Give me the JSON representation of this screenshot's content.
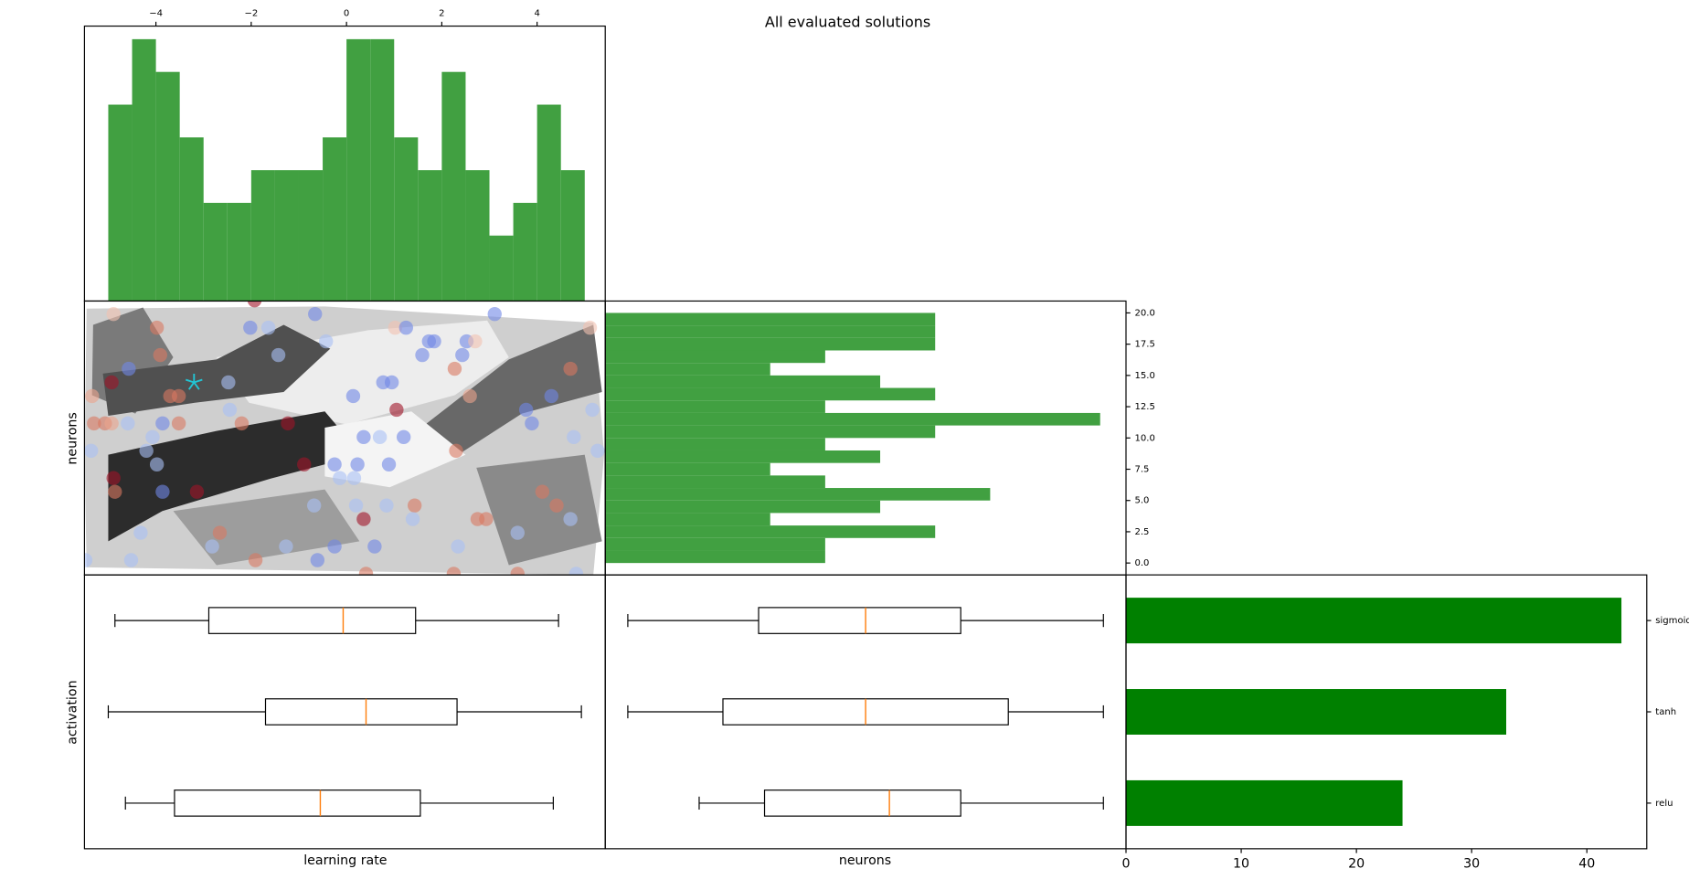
{
  "title": "All evaluated solutions",
  "chart_data": [
    {
      "type": "histogram",
      "color": "#41a041",
      "bins": [
        -5,
        -4.5,
        -4,
        -3.5,
        -3,
        -2.5,
        -2,
        -1.5,
        -1,
        -0.5,
        0,
        0.5,
        1,
        1.5,
        2,
        2.5,
        3,
        3.5,
        4,
        4.5,
        5
      ],
      "counts": [
        6,
        8,
        7,
        5,
        3,
        3,
        4,
        4,
        4,
        5,
        8,
        8,
        5,
        4,
        7,
        4,
        2,
        3,
        6,
        4
      ],
      "xlim": [
        -5.5,
        5.43
      ],
      "ylim": [
        0,
        8.4
      ],
      "xticks": [
        {
          "value": -4,
          "label": "−4"
        },
        {
          "value": -2,
          "label": "−2"
        },
        0,
        2,
        4
      ],
      "xticks_position": "top"
    },
    {
      "type": "scatter",
      "ylabel": "neurons",
      "xlim": [
        -5.5,
        5.43
      ],
      "ylim": [
        -0.08,
        19.95
      ],
      "x": [
        -4.89,
        -3.98,
        -3.91,
        -4.57,
        -4.93,
        -5.34,
        -5.3,
        -5.07,
        -4.93,
        -4.59,
        -3.86,
        -3.52,
        -3.7,
        -3.52,
        -2.48,
        -2.45,
        -2.2,
        -1.23,
        -2.02,
        -1.64,
        -1.43,
        -0.66,
        -0.43,
        0.14,
        0.77,
        0.95,
        1.05,
        1.02,
        1.25,
        1.59,
        1.73,
        1.84,
        2.43,
        2.52,
        2.7,
        2.27,
        2.59,
        3.11,
        3.77,
        3.89,
        4.3,
        4.7,
        5.11,
        5.16,
        0.36,
        0.7,
        1.2,
        2.3,
        4.77,
        5.27,
        -5.36,
        -4.2,
        -4.07,
        -3.98,
        -4.89,
        -4.86,
        -3.86,
        -3.14,
        -0.89,
        -0.25,
        0.23,
        -0.14,
        0.16,
        0.89,
        -0.68,
        0.2,
        0.84,
        1.43,
        1.39,
        0.36,
        2.75,
        2.93,
        4.11,
        4.41,
        4.7,
        3.59,
        -4.32,
        -2.66,
        -2.82,
        -1.27,
        -0.25,
        0.59,
        2.34,
        -5.48,
        -4.52,
        -1.91,
        -0.61,
        0.41,
        2.25,
        3.59,
        4.82,
        -1.93
      ],
      "y": [
        19,
        18,
        16,
        15,
        14,
        13,
        11,
        11,
        11,
        11,
        11,
        11,
        13,
        13,
        14,
        12,
        11,
        11,
        18,
        18,
        16,
        19,
        17,
        13,
        14,
        14,
        12,
        18,
        18,
        16,
        17,
        17,
        16,
        17,
        17,
        15,
        13,
        19,
        12,
        11,
        13,
        15,
        18,
        12,
        10,
        10,
        10,
        9,
        10,
        9,
        9,
        9,
        10,
        8,
        7,
        6,
        6,
        6,
        8,
        8,
        8,
        7,
        7,
        8,
        5,
        5,
        5,
        5,
        4,
        4,
        4,
        4,
        6,
        5,
        4,
        3,
        3,
        3,
        2,
        2,
        2,
        2,
        2,
        1,
        1,
        1,
        1,
        0,
        0,
        0,
        0,
        20
      ],
      "colors": [
        "#f2c2b0",
        "#d97860",
        "#d97860",
        "#6f87e6",
        "#a01428",
        "#eba48c",
        "#d97860",
        "#d97860",
        "#eba48c",
        "#a8bff5",
        "#6f87e6",
        "#d97860",
        "#d97860",
        "#d97860",
        "#a8bff5",
        "#a8bff5",
        "#d97860",
        "#a01428",
        "#6f87e6",
        "#a8bff5",
        "#a8bff5",
        "#6f87e6",
        "#a8bff5",
        "#6f87e6",
        "#6f87e6",
        "#6f87e6",
        "#a01428",
        "#f2c2b0",
        "#6f87e6",
        "#6f87e6",
        "#6f87e6",
        "#6f87e6",
        "#6f87e6",
        "#6f87e6",
        "#f2c2b0",
        "#d97860",
        "#eba48c",
        "#6f87e6",
        "#6f87e6",
        "#6f87e6",
        "#6f87e6",
        "#d97860",
        "#f2c2b0",
        "#a8bff5",
        "#6f87e6",
        "#a8bff5",
        "#6f87e6",
        "#d97860",
        "#a8bff5",
        "#a8bff5",
        "#a8bff5",
        "#a8bff5",
        "#a8bff5",
        "#a8bff5",
        "#a01428",
        "#d97860",
        "#6f87e6",
        "#a01428",
        "#a01428",
        "#6f87e6",
        "#6f87e6",
        "#a8bff5",
        "#a8bff5",
        "#6f87e6",
        "#a8bff5",
        "#a8bff5",
        "#a8bff5",
        "#d97860",
        "#a8bff5",
        "#a01428",
        "#d97860",
        "#d97860",
        "#d97860",
        "#d97860",
        "#a8bff5",
        "#a8bff5",
        "#a8bff5",
        "#d97860",
        "#a8bff5",
        "#a8bff5",
        "#6f87e6",
        "#6f87e6",
        "#a8bff5",
        "#a8bff5",
        "#a8bff5",
        "#d97860",
        "#6f87e6",
        "#d97860",
        "#d97860",
        "#d97860",
        "#a8bff5",
        "#a01428"
      ],
      "best": {
        "x": -3.2,
        "y": 14,
        "color": "#22c4d4"
      }
    },
    {
      "type": "histogram",
      "orientation": "horizontal",
      "color": "#41a041",
      "bins": [
        0,
        1,
        2,
        3,
        4,
        5,
        6,
        7,
        8,
        9,
        10,
        11,
        12,
        13,
        14,
        15,
        16,
        17,
        18,
        19,
        20
      ],
      "counts": [
        4,
        4,
        6,
        3,
        5,
        7,
        4,
        3,
        5,
        4,
        6,
        9,
        4,
        6,
        5,
        3,
        4,
        6,
        6,
        6
      ],
      "xlim": [
        0,
        9.47
      ],
      "ylim": [
        -0.95,
        20.95
      ],
      "yticks": [
        {
          "value": 0,
          "label": "0.0"
        },
        {
          "value": 2.5,
          "label": "2.5"
        },
        {
          "value": 5,
          "label": "5.0"
        },
        {
          "value": 7.5,
          "label": "7.5"
        },
        {
          "value": 10,
          "label": "10.0"
        },
        {
          "value": 12.5,
          "label": "12.5"
        },
        {
          "value": 15,
          "label": "15.0"
        },
        {
          "value": 17.5,
          "label": "17.5"
        },
        {
          "value": 20,
          "label": "20.0"
        }
      ],
      "yticks_position": "right"
    },
    {
      "type": "boxplot",
      "xlabel": "learning rate",
      "ylabel": "activation",
      "xlim": [
        -5.5,
        5.43
      ],
      "median_color": "#ff7f0e",
      "boxes": [
        {
          "whislo": -4.86,
          "q1": -2.89,
          "med": -0.07,
          "q3": 1.45,
          "whishi": 4.45
        },
        {
          "whislo": -5.0,
          "q1": -1.7,
          "med": 0.41,
          "q3": 2.32,
          "whishi": 4.93
        },
        {
          "whislo": -4.64,
          "q1": -3.61,
          "med": -0.55,
          "q3": 1.55,
          "whishi": 4.34
        }
      ]
    },
    {
      "type": "boxplot",
      "xlabel": "neurons",
      "xlim": [
        -0.95,
        20.95
      ],
      "median_color": "#ff7f0e",
      "boxes": [
        {
          "whislo": 0,
          "q1": 5.5,
          "med": 10,
          "q3": 14,
          "whishi": 20
        },
        {
          "whislo": 0,
          "q1": 4,
          "med": 10,
          "q3": 16,
          "whishi": 20
        },
        {
          "whislo": 3,
          "q1": 5.75,
          "med": 11,
          "q3": 14,
          "whishi": 20
        }
      ]
    },
    {
      "type": "bar",
      "orientation": "horizontal",
      "color": "#008000",
      "categories": [
        "sigmoid",
        "tanh",
        "relu"
      ],
      "values": [
        43,
        33,
        24
      ],
      "xlim": [
        0,
        45.2
      ],
      "xticks": [
        0,
        10,
        20,
        30,
        40
      ],
      "categories_position": "right"
    }
  ]
}
